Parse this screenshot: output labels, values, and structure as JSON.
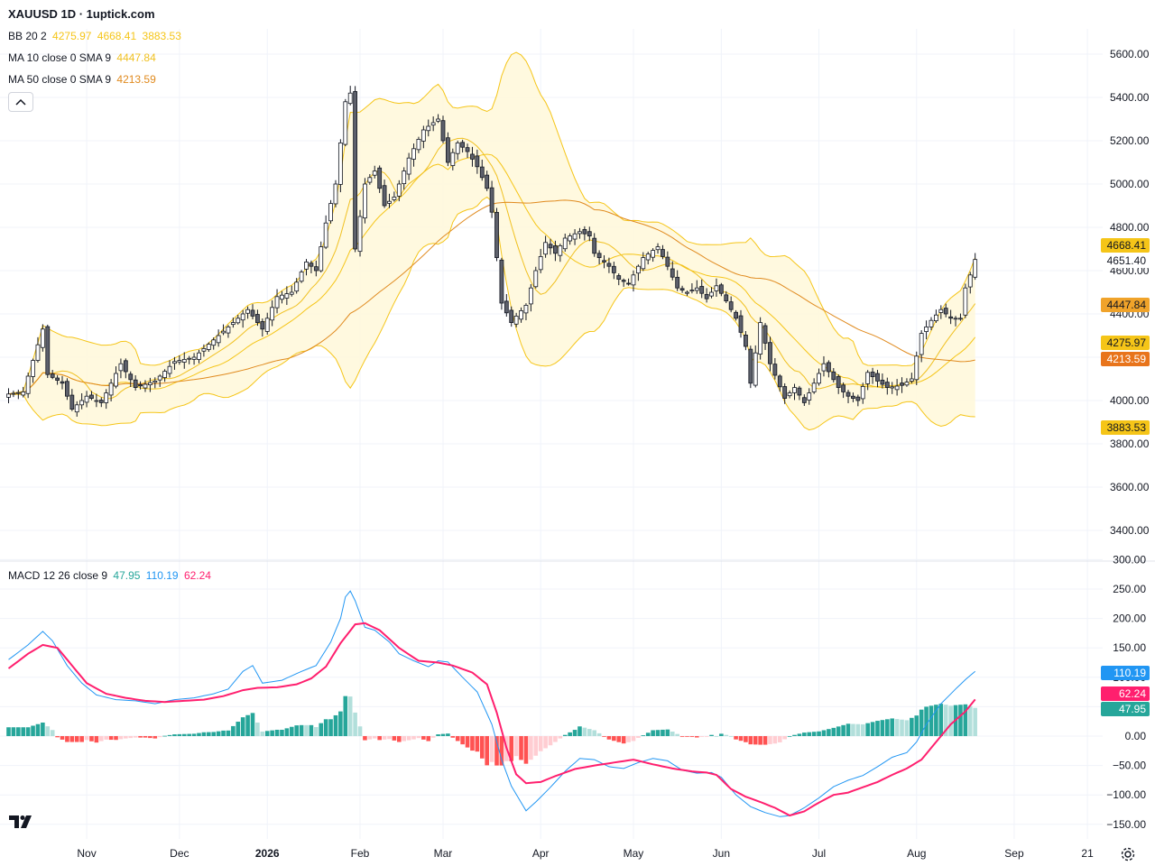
{
  "header": {
    "title": "XAUUSD 1D · 1uptick.com",
    "bb": {
      "label": "BB 20 2",
      "basis": "4275.97",
      "upper": "4668.41",
      "lower": "3883.53"
    },
    "ma10": {
      "label": "MA 10 close 0 SMA 9",
      "value": "4447.84"
    },
    "ma50": {
      "label": "MA 50 close 0 SMA 9",
      "value": "4213.59"
    }
  },
  "macd_legend": {
    "label": "MACD 12 26 close 9",
    "hist": "47.95",
    "macd": "110.19",
    "signal": "62.24"
  },
  "colors": {
    "up": "#ffffff",
    "down": "#5d606b",
    "wick": "#131722",
    "bb_line": "#f5c518",
    "bb_fill": "#fff8dc",
    "ma10": "#f0c020",
    "ma50": "#e08a1e",
    "macd_line": "#2196f3",
    "signal_line": "#ff1f6e",
    "hist_up_strong": "#26a69a",
    "hist_up_weak": "#b2dfdb",
    "hist_down_strong": "#ff5252",
    "hist_down_weak": "#ffcdd2",
    "grid": "#f0f3fa",
    "axis_text": "#131722"
  },
  "icons": {
    "collapse": "chevron-up-icon",
    "logo": "tradingview-logo-icon",
    "settings": "gear-icon"
  },
  "chart_data": [
    {
      "type": "candlestick",
      "title": "XAUUSD 1D",
      "ylim": [
        3300,
        5700
      ],
      "yticks": [
        3400,
        3600,
        3800,
        4000,
        4200,
        4400,
        4600,
        4800,
        5000,
        5200,
        5400,
        5600
      ],
      "ytick_labels": [
        "3400.00",
        "3600.00",
        "3800.00",
        "4000.00",
        "4200.00",
        "4400.00",
        "4600.00",
        "4800.00",
        "5000.00",
        "5200.00",
        "5400.00",
        "5600.00"
      ],
      "x_ticks": [
        {
          "label": "Nov",
          "bar": 16,
          "bold": false
        },
        {
          "label": "Dec",
          "bar": 35,
          "bold": false
        },
        {
          "label": "2026",
          "bar": 53,
          "bold": true
        },
        {
          "label": "Feb",
          "bar": 72,
          "bold": false
        },
        {
          "label": "Mar",
          "bar": 89,
          "bold": false
        },
        {
          "label": "Apr",
          "bar": 109,
          "bold": false
        },
        {
          "label": "May",
          "bar": 128,
          "bold": false
        },
        {
          "label": "Jun",
          "bar": 146,
          "bold": false
        },
        {
          "label": "Jul",
          "bar": 166,
          "bold": false
        },
        {
          "label": "Aug",
          "bar": 186,
          "bold": false
        },
        {
          "label": "Sep",
          "bar": 206,
          "bold": false
        },
        {
          "label": "21",
          "bar": 221,
          "bold": false
        }
      ],
      "bar_count": 199,
      "close_anchors": [
        [
          0,
          4030
        ],
        [
          3,
          4040
        ],
        [
          7,
          4330
        ],
        [
          8,
          4120
        ],
        [
          11,
          4080
        ],
        [
          13,
          3960
        ],
        [
          16,
          4020
        ],
        [
          19,
          3990
        ],
        [
          23,
          4170
        ],
        [
          26,
          4060
        ],
        [
          30,
          4090
        ],
        [
          34,
          4180
        ],
        [
          38,
          4200
        ],
        [
          42,
          4280
        ],
        [
          45,
          4340
        ],
        [
          49,
          4420
        ],
        [
          52,
          4330
        ],
        [
          55,
          4480
        ],
        [
          58,
          4500
        ],
        [
          61,
          4640
        ],
        [
          63,
          4600
        ],
        [
          65,
          4820
        ],
        [
          67,
          5000
        ],
        [
          69,
          5380
        ],
        [
          70,
          5420
        ],
        [
          71,
          4700
        ],
        [
          73,
          5000
        ],
        [
          75,
          5060
        ],
        [
          77,
          4900
        ],
        [
          79,
          4940
        ],
        [
          82,
          5120
        ],
        [
          85,
          5250
        ],
        [
          88,
          5300
        ],
        [
          90,
          5100
        ],
        [
          92,
          5190
        ],
        [
          94,
          5150
        ],
        [
          96,
          5080
        ],
        [
          98,
          4980
        ],
        [
          99,
          4870
        ],
        [
          101,
          4450
        ],
        [
          103,
          4360
        ],
        [
          104,
          4390
        ],
        [
          106,
          4440
        ],
        [
          108,
          4600
        ],
        [
          110,
          4730
        ],
        [
          112,
          4680
        ],
        [
          114,
          4750
        ],
        [
          117,
          4780
        ],
        [
          119,
          4760
        ],
        [
          120,
          4680
        ],
        [
          123,
          4620
        ],
        [
          125,
          4560
        ],
        [
          127,
          4540
        ],
        [
          130,
          4660
        ],
        [
          133,
          4710
        ],
        [
          135,
          4620
        ],
        [
          137,
          4520
        ],
        [
          139,
          4500
        ],
        [
          141,
          4520
        ],
        [
          143,
          4470
        ],
        [
          145,
          4530
        ],
        [
          147,
          4460
        ],
        [
          149,
          4380
        ],
        [
          151,
          4250
        ],
        [
          152,
          4080
        ],
        [
          154,
          4360
        ],
        [
          156,
          4170
        ],
        [
          159,
          4010
        ],
        [
          161,
          4060
        ],
        [
          163,
          3990
        ],
        [
          165,
          4080
        ],
        [
          167,
          4170
        ],
        [
          170,
          4060
        ],
        [
          172,
          4020
        ],
        [
          174,
          4000
        ],
        [
          176,
          4130
        ],
        [
          178,
          4090
        ],
        [
          180,
          4060
        ],
        [
          183,
          4070
        ],
        [
          185,
          4100
        ],
        [
          187,
          4310
        ],
        [
          189,
          4370
        ],
        [
          191,
          4420
        ],
        [
          193,
          4380
        ],
        [
          195,
          4380
        ],
        [
          196,
          4520
        ],
        [
          197,
          4580
        ],
        [
          198,
          4651
        ]
      ],
      "last_close": 4651.4,
      "price_labels": [
        {
          "text": "4668.41",
          "value": 4668.41,
          "color": "#f5c518",
          "text_color": "#131722"
        },
        {
          "text": "4651.40",
          "value": 4651.4,
          "color": "#ffffff",
          "text_color": "#131722"
        },
        {
          "text": "4447.84",
          "value": 4447.84,
          "color": "#f0a32a",
          "text_color": "#131722"
        },
        {
          "text": "4275.97",
          "value": 4275.97,
          "color": "#f5c518",
          "text_color": "#131722"
        },
        {
          "text": "4213.59",
          "value": 4213.59,
          "color": "#e8741b",
          "text_color": "#ffffff"
        },
        {
          "text": "3883.53",
          "value": 3883.53,
          "color": "#f5c518",
          "text_color": "#131722"
        }
      ]
    },
    {
      "type": "macd",
      "title": "MACD 12 26 close 9",
      "ylim": [
        -175,
        310
      ],
      "yticks": [
        -150,
        -100,
        -50,
        0,
        50,
        100,
        150,
        200,
        250,
        300
      ],
      "ytick_labels": [
        "−150.00",
        "−100.00",
        "−50.00",
        "0.00",
        "50.00",
        "100.00",
        "150.00",
        "200.00",
        "250.00",
        "300.00"
      ],
      "macd_anchors": [
        [
          0,
          130
        ],
        [
          4,
          155
        ],
        [
          7,
          178
        ],
        [
          9,
          162
        ],
        [
          12,
          120
        ],
        [
          15,
          90
        ],
        [
          18,
          70
        ],
        [
          22,
          62
        ],
        [
          26,
          60
        ],
        [
          30,
          55
        ],
        [
          34,
          62
        ],
        [
          38,
          65
        ],
        [
          42,
          72
        ],
        [
          45,
          80
        ],
        [
          48,
          110
        ],
        [
          50,
          120
        ],
        [
          52,
          90
        ],
        [
          56,
          95
        ],
        [
          60,
          110
        ],
        [
          63,
          120
        ],
        [
          66,
          160
        ],
        [
          68,
          200
        ],
        [
          69.5,
          255
        ],
        [
          71,
          230
        ],
        [
          73,
          185
        ],
        [
          75,
          180
        ],
        [
          78,
          160
        ],
        [
          80,
          140
        ],
        [
          83,
          128
        ],
        [
          86,
          118
        ],
        [
          88,
          128
        ],
        [
          90,
          126
        ],
        [
          93,
          100
        ],
        [
          96,
          75
        ],
        [
          99,
          20
        ],
        [
          101,
          -40
        ],
        [
          103,
          -85
        ],
        [
          106,
          -127
        ],
        [
          108,
          -112
        ],
        [
          111,
          -87
        ],
        [
          114,
          -60
        ],
        [
          117,
          -38
        ],
        [
          120,
          -40
        ],
        [
          123,
          -52
        ],
        [
          126,
          -55
        ],
        [
          129,
          -45
        ],
        [
          132,
          -38
        ],
        [
          135,
          -42
        ],
        [
          138,
          -58
        ],
        [
          141,
          -63
        ],
        [
          144,
          -62
        ],
        [
          146,
          -70
        ],
        [
          149,
          -100
        ],
        [
          152,
          -120
        ],
        [
          155,
          -130
        ],
        [
          158,
          -137
        ],
        [
          160,
          -135
        ],
        [
          163,
          -122
        ],
        [
          166,
          -105
        ],
        [
          169,
          -86
        ],
        [
          172,
          -75
        ],
        [
          175,
          -67
        ],
        [
          178,
          -52
        ],
        [
          181,
          -36
        ],
        [
          184,
          -28
        ],
        [
          186,
          -10
        ],
        [
          188,
          20
        ],
        [
          191,
          55
        ],
        [
          194,
          80
        ],
        [
          196,
          96
        ],
        [
          198,
          110.19
        ]
      ],
      "signal_anchors": [
        [
          0,
          115
        ],
        [
          4,
          140
        ],
        [
          7,
          155
        ],
        [
          10,
          150
        ],
        [
          13,
          120
        ],
        [
          16,
          90
        ],
        [
          20,
          72
        ],
        [
          24,
          65
        ],
        [
          28,
          60
        ],
        [
          32,
          58
        ],
        [
          36,
          60
        ],
        [
          40,
          62
        ],
        [
          44,
          68
        ],
        [
          48,
          78
        ],
        [
          51,
          82
        ],
        [
          55,
          83
        ],
        [
          59,
          88
        ],
        [
          62,
          98
        ],
        [
          65,
          118
        ],
        [
          68,
          158
        ],
        [
          71,
          190
        ],
        [
          73,
          192
        ],
        [
          76,
          180
        ],
        [
          80,
          150
        ],
        [
          84,
          128
        ],
        [
          88,
          125
        ],
        [
          91,
          120
        ],
        [
          95,
          108
        ],
        [
          98,
          88
        ],
        [
          100,
          40
        ],
        [
          102,
          -20
        ],
        [
          104,
          -65
        ],
        [
          106,
          -80
        ],
        [
          109,
          -78
        ],
        [
          112,
          -68
        ],
        [
          116,
          -56
        ],
        [
          120,
          -50
        ],
        [
          124,
          -45
        ],
        [
          128,
          -40
        ],
        [
          132,
          -48
        ],
        [
          136,
          -55
        ],
        [
          140,
          -60
        ],
        [
          143,
          -62
        ],
        [
          145,
          -66
        ],
        [
          148,
          -90
        ],
        [
          151,
          -103
        ],
        [
          154,
          -112
        ],
        [
          157,
          -122
        ],
        [
          160,
          -135
        ],
        [
          163,
          -128
        ],
        [
          166,
          -113
        ],
        [
          169,
          -100
        ],
        [
          172,
          -96
        ],
        [
          175,
          -87
        ],
        [
          178,
          -78
        ],
        [
          181,
          -66
        ],
        [
          184,
          -55
        ],
        [
          187,
          -40
        ],
        [
          190,
          -10
        ],
        [
          193,
          20
        ],
        [
          196,
          42
        ],
        [
          198,
          62.24
        ]
      ],
      "hist_last": 47.95
    }
  ]
}
